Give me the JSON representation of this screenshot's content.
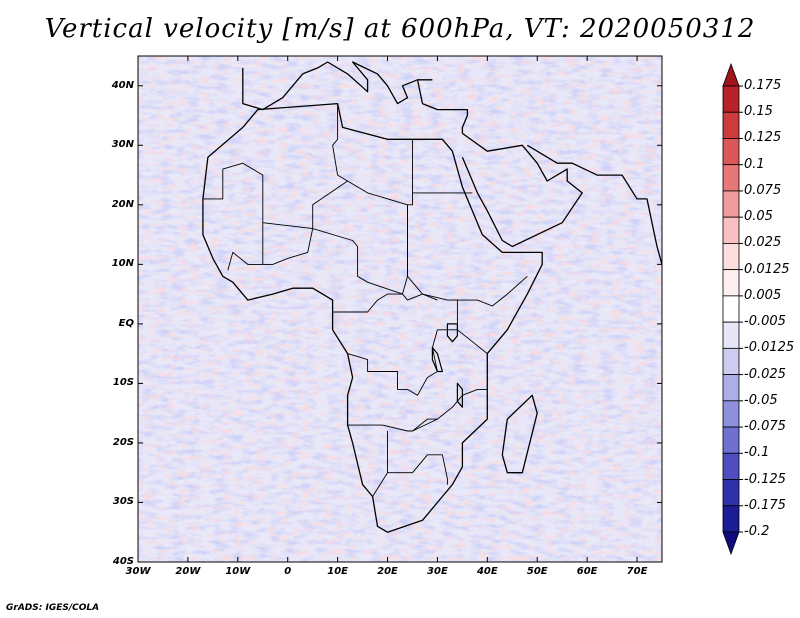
{
  "title": "Vertical velocity [m/s] at 600hPa, VT: 2020050312",
  "credit": "GrADS: IGES/COLA",
  "map": {
    "variable": "Vertical velocity",
    "units": "m/s",
    "level": "600hPa",
    "valid_time": "2020050312",
    "lat_range": [
      -40,
      45
    ],
    "lon_range": [
      -30,
      75
    ],
    "lat_labels": [
      {
        "lat": 40,
        "text": "40N"
      },
      {
        "lat": 30,
        "text": "30N"
      },
      {
        "lat": 20,
        "text": "20N"
      },
      {
        "lat": 10,
        "text": "10N"
      },
      {
        "lat": 0,
        "text": "EQ"
      },
      {
        "lat": -10,
        "text": "10S"
      },
      {
        "lat": -20,
        "text": "20S"
      },
      {
        "lat": -30,
        "text": "30S"
      },
      {
        "lat": -40,
        "text": "40S"
      }
    ],
    "lon_labels": [
      {
        "lon": -30,
        "text": "30W"
      },
      {
        "lon": -20,
        "text": "20W"
      },
      {
        "lon": -10,
        "text": "10W"
      },
      {
        "lon": 0,
        "text": "0"
      },
      {
        "lon": 10,
        "text": "10E"
      },
      {
        "lon": 20,
        "text": "20E"
      },
      {
        "lon": 30,
        "text": "30E"
      },
      {
        "lon": 40,
        "text": "40E"
      },
      {
        "lon": 50,
        "text": "50E"
      },
      {
        "lon": 60,
        "text": "60E"
      },
      {
        "lon": 70,
        "text": "70E"
      }
    ]
  },
  "colorbar": {
    "labels": [
      "0.175",
      "0.15",
      "0.125",
      "0.1",
      "0.075",
      "0.05",
      "0.025",
      "0.0125",
      "0.005",
      "-0.005",
      "-0.0125",
      "-0.025",
      "-0.05",
      "-0.075",
      "-0.1",
      "-0.125",
      "-0.175",
      "-0.2"
    ],
    "colors": [
      "#a0141c",
      "#b8222a",
      "#cc3c3c",
      "#dc5858",
      "#e87878",
      "#f09c9c",
      "#f8c0c0",
      "#fcdede",
      "#fff0f0",
      "#ffffff",
      "#e6e6f8",
      "#cccdf0",
      "#acaee6",
      "#8e90dc",
      "#6f70d0",
      "#4e4ec0",
      "#3030aa",
      "#1c1c94",
      "#100c80"
    ]
  },
  "africa_outline": [
    [
      -17,
      21
    ],
    [
      -16,
      28
    ],
    [
      -9,
      33
    ],
    [
      -6,
      36
    ],
    [
      10,
      37
    ],
    [
      11,
      33
    ],
    [
      20,
      31
    ],
    [
      31,
      31
    ],
    [
      33,
      29
    ],
    [
      35,
      23
    ],
    [
      39,
      15
    ],
    [
      43,
      12
    ],
    [
      51,
      12
    ],
    [
      51,
      10
    ],
    [
      48,
      5
    ],
    [
      44,
      -1
    ],
    [
      40,
      -5
    ],
    [
      40,
      -12
    ],
    [
      40,
      -16
    ],
    [
      35,
      -20
    ],
    [
      35,
      -24
    ],
    [
      33,
      -27
    ],
    [
      31,
      -29
    ],
    [
      27,
      -33
    ],
    [
      20,
      -35
    ],
    [
      18,
      -34
    ],
    [
      17,
      -29
    ],
    [
      15,
      -27
    ],
    [
      13,
      -20
    ],
    [
      12,
      -17
    ],
    [
      12,
      -12
    ],
    [
      13,
      -9
    ],
    [
      12,
      -5
    ],
    [
      9,
      -1
    ],
    [
      9,
      3
    ],
    [
      9,
      4
    ],
    [
      5,
      6
    ],
    [
      1,
      6
    ],
    [
      -3,
      5
    ],
    [
      -8,
      4
    ],
    [
      -11,
      7
    ],
    [
      -13,
      8
    ],
    [
      -15,
      11
    ],
    [
      -17,
      15
    ],
    [
      -17,
      21
    ]
  ],
  "arabia_outline": [
    [
      35,
      32
    ],
    [
      40,
      29
    ],
    [
      47,
      30
    ],
    [
      50,
      27
    ],
    [
      52,
      24
    ],
    [
      56,
      26
    ],
    [
      56,
      24
    ],
    [
      59,
      22
    ],
    [
      55,
      17
    ],
    [
      45,
      13
    ],
    [
      43,
      14
    ],
    [
      40,
      19
    ],
    [
      38,
      22
    ],
    [
      35,
      28
    ]
  ],
  "europe_outline": [
    [
      -9,
      43
    ],
    [
      -9,
      37
    ],
    [
      -5,
      36
    ],
    [
      -1,
      38
    ],
    [
      3,
      42
    ],
    [
      6,
      43
    ],
    [
      8,
      44
    ],
    [
      12,
      42
    ],
    [
      16,
      39
    ],
    [
      16,
      41
    ],
    [
      13,
      44
    ],
    [
      18,
      42
    ],
    [
      20,
      40
    ],
    [
      22,
      37
    ],
    [
      24,
      38
    ],
    [
      23,
      40
    ],
    [
      26,
      41
    ],
    [
      29,
      41
    ]
  ],
  "asia_outline": [
    [
      26,
      41
    ],
    [
      27,
      37
    ],
    [
      30,
      36
    ],
    [
      36,
      36
    ],
    [
      36,
      35
    ],
    [
      35,
      33
    ],
    [
      35,
      32
    ]
  ],
  "madagascar_outline": [
    [
      44,
      -25
    ],
    [
      47,
      -25
    ],
    [
      50,
      -15
    ],
    [
      49,
      -12
    ],
    [
      44,
      -16
    ],
    [
      43,
      -22
    ]
  ],
  "persia_outline": [
    [
      48,
      30
    ],
    [
      50,
      29
    ],
    [
      54,
      27
    ],
    [
      57,
      27
    ],
    [
      62,
      25
    ],
    [
      67,
      25
    ],
    [
      70,
      21
    ],
    [
      72,
      21
    ],
    [
      73,
      17
    ],
    [
      74,
      13
    ],
    [
      75,
      10
    ]
  ],
  "inner_borders": [
    [
      [
        -17,
        21
      ],
      [
        -13,
        21
      ],
      [
        -13,
        26
      ],
      [
        -9,
        27
      ],
      [
        -5,
        25
      ],
      [
        -5,
        17
      ],
      [
        5,
        16
      ],
      [
        5,
        20
      ],
      [
        12,
        24
      ],
      [
        16,
        22
      ],
      [
        24,
        20
      ],
      [
        24,
        8
      ]
    ],
    [
      [
        -5,
        17
      ],
      [
        -5,
        10
      ],
      [
        -8,
        10
      ],
      [
        -11,
        12
      ],
      [
        -12,
        9
      ]
    ],
    [
      [
        5,
        16
      ],
      [
        4,
        12
      ],
      [
        0,
        11
      ],
      [
        -3,
        10
      ],
      [
        -5,
        10
      ]
    ],
    [
      [
        5,
        16
      ],
      [
        13,
        14
      ],
      [
        14,
        13
      ],
      [
        14,
        8
      ],
      [
        16,
        7
      ],
      [
        23,
        5
      ],
      [
        24,
        8
      ]
    ],
    [
      [
        10,
        37
      ],
      [
        10,
        31
      ],
      [
        9,
        30
      ],
      [
        10,
        25
      ],
      [
        12,
        24
      ]
    ],
    [
      [
        25,
        31
      ],
      [
        25,
        22
      ],
      [
        37,
        22
      ]
    ],
    [
      [
        24,
        20
      ],
      [
        24,
        8
      ],
      [
        27,
        5
      ],
      [
        32,
        4
      ],
      [
        34,
        4
      ],
      [
        34,
        -1
      ]
    ],
    [
      [
        25,
        22
      ],
      [
        25,
        20
      ],
      [
        24,
        20
      ]
    ],
    [
      [
        33,
        4
      ],
      [
        38,
        4
      ],
      [
        41,
        3
      ],
      [
        44,
        5
      ],
      [
        48,
        8
      ]
    ],
    [
      [
        9,
        2
      ],
      [
        11,
        2
      ],
      [
        14,
        2
      ],
      [
        16,
        2
      ],
      [
        18,
        4
      ],
      [
        20,
        5
      ],
      [
        23,
        5
      ],
      [
        24,
        4
      ],
      [
        27,
        5
      ],
      [
        30,
        4
      ]
    ],
    [
      [
        12,
        -5
      ],
      [
        16,
        -6
      ],
      [
        16,
        -8
      ],
      [
        22,
        -8
      ],
      [
        22,
        -11
      ],
      [
        24,
        -11
      ],
      [
        26,
        -12
      ],
      [
        28,
        -9
      ],
      [
        30,
        -8
      ],
      [
        29,
        -4
      ],
      [
        30,
        -1
      ]
    ],
    [
      [
        12,
        -17
      ],
      [
        19,
        -17
      ],
      [
        24,
        -18
      ],
      [
        25,
        -18
      ],
      [
        30,
        -16
      ],
      [
        33,
        -14
      ],
      [
        35,
        -12
      ],
      [
        38,
        -11
      ],
      [
        40,
        -11
      ]
    ],
    [
      [
        20,
        -18
      ],
      [
        20,
        -22
      ],
      [
        20,
        -25
      ],
      [
        25,
        -25
      ],
      [
        28,
        -22
      ],
      [
        31,
        -22
      ],
      [
        32,
        -26
      ],
      [
        32,
        -27
      ]
    ],
    [
      [
        17,
        -29
      ],
      [
        20,
        -25
      ]
    ],
    [
      [
        25,
        -18
      ],
      [
        28,
        -16
      ],
      [
        30,
        -16
      ]
    ],
    [
      [
        30,
        -1
      ],
      [
        34,
        -1
      ],
      [
        37,
        -3
      ],
      [
        40,
        -5
      ]
    ]
  ],
  "lakes": [
    [
      [
        32,
        0
      ],
      [
        34,
        0
      ],
      [
        34,
        -2
      ],
      [
        33,
        -3
      ],
      [
        32,
        -2
      ]
    ],
    [
      [
        29,
        -4
      ],
      [
        30,
        -5
      ],
      [
        31,
        -8
      ],
      [
        30,
        -8
      ],
      [
        29,
        -6
      ]
    ],
    [
      [
        34,
        -10
      ],
      [
        35,
        -11
      ],
      [
        35,
        -14
      ],
      [
        34,
        -13
      ]
    ]
  ]
}
